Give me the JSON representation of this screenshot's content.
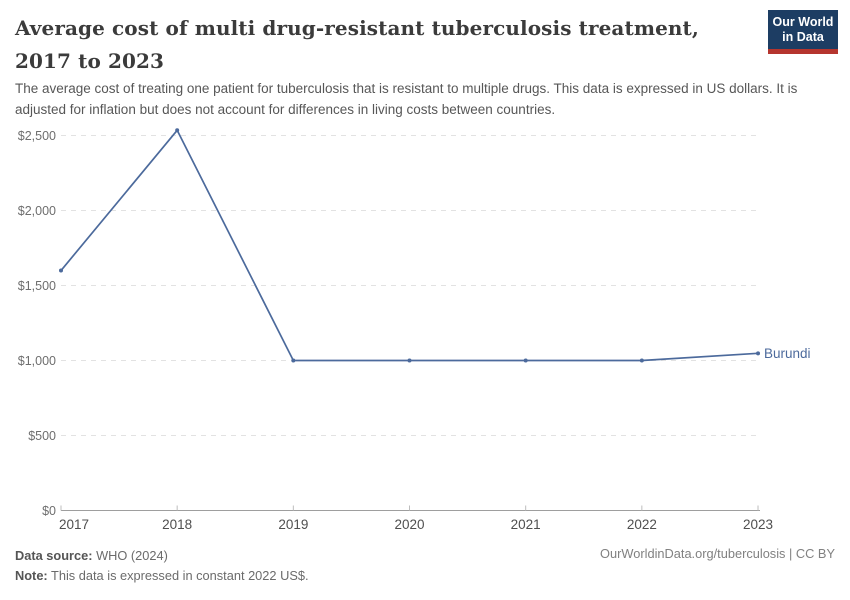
{
  "header": {
    "title": "Average cost of multi drug-resistant tuberculosis treatment, 2017 to 2023",
    "subtitle": "The average cost of treating one patient for tuberculosis that is resistant to multiple drugs. This data is expressed in US dollars. It is adjusted for inflation but does not account for differences in living costs between countries.",
    "logo": {
      "line1": "Our World",
      "line2": "in Data",
      "bg_color": "#1d3d63",
      "accent_color": "#b5352e"
    }
  },
  "chart_data": {
    "type": "line",
    "title": "Average cost of multi drug-resistant tuberculosis treatment, 2017 to 2023",
    "x": [
      2017,
      2018,
      2019,
      2020,
      2021,
      2022,
      2023
    ],
    "x_tick_labels": [
      "2017",
      "2018",
      "2019",
      "2020",
      "2021",
      "2022",
      "2023"
    ],
    "series": [
      {
        "name": "Burundi",
        "color": "#4c6a9c",
        "values": [
          1600,
          2535,
          1000,
          1000,
          1000,
          1000,
          1048
        ]
      }
    ],
    "y_tick_values": [
      0,
      500,
      1000,
      1500,
      2000,
      2500
    ],
    "y_tick_labels": [
      "$0",
      "$500",
      "$1,000",
      "$1,500",
      "$2,000",
      "$2,500"
    ],
    "ylim": [
      0,
      2617
    ],
    "xlabel": "",
    "ylabel": "",
    "unit": "US$",
    "grid": "horizontal-dashed",
    "legend_position": "end-of-line"
  },
  "footer": {
    "source_label": "Data source:",
    "source_value": "WHO (2024)",
    "note_label": "Note:",
    "note_value": "This data is expressed in constant 2022 US$.",
    "link": "OurWorldinData.org/tuberculosis | CC BY"
  }
}
